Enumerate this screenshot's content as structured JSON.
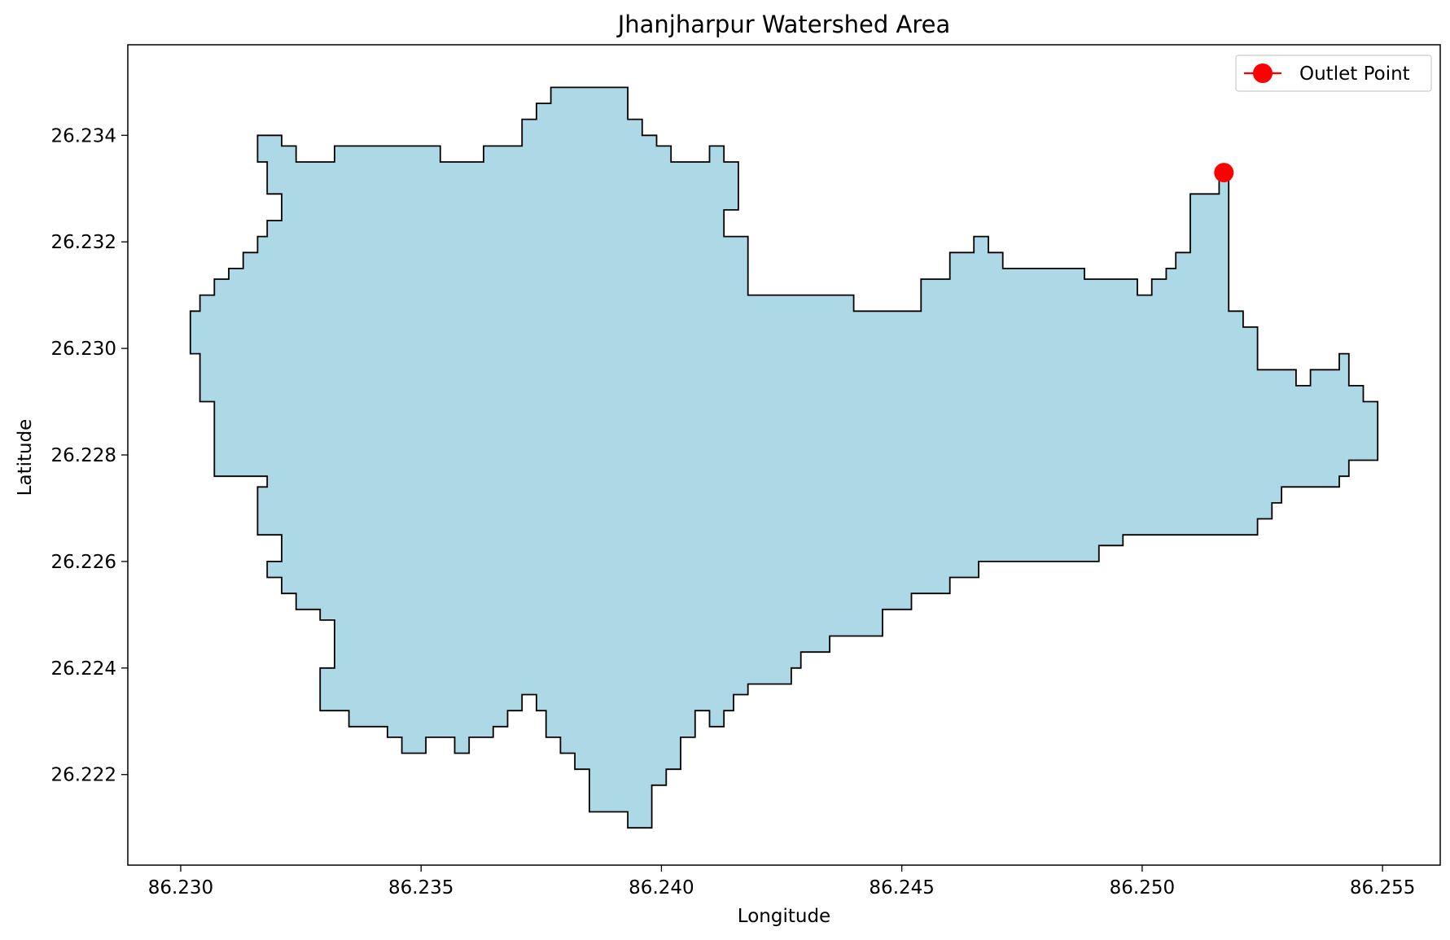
{
  "chart_data": {
    "type": "area",
    "title": "Jhanjharpur Watershed Area",
    "xlabel": "Longitude",
    "ylabel": "Latitude",
    "xlim": [
      86.2289,
      86.2562
    ],
    "ylim": [
      26.2203,
      26.2357
    ],
    "grid": false,
    "legend_position": "top-right",
    "xticks": [
      86.23,
      86.235,
      86.24,
      86.245,
      86.25,
      86.255
    ],
    "xtick_labels": [
      "86.230",
      "86.235",
      "86.240",
      "86.245",
      "86.250",
      "86.255"
    ],
    "yticks": [
      26.222,
      26.224,
      26.226,
      26.228,
      26.23,
      26.232,
      26.234
    ],
    "ytick_labels": [
      "26.222",
      "26.224",
      "26.226",
      "26.228",
      "26.230",
      "26.232",
      "26.234"
    ],
    "polygon_fill": "#add8e6",
    "polygon_stroke": "#000000",
    "watershed_boundary": [
      [
        86.2316,
        26.234
      ],
      [
        86.2321,
        26.234
      ],
      [
        86.2321,
        26.2338
      ],
      [
        86.2324,
        26.2338
      ],
      [
        86.2324,
        26.2335
      ],
      [
        86.2332,
        26.2335
      ],
      [
        86.2332,
        26.2338
      ],
      [
        86.2354,
        26.2338
      ],
      [
        86.2354,
        26.2335
      ],
      [
        86.2363,
        26.2335
      ],
      [
        86.2363,
        26.2338
      ],
      [
        86.2371,
        26.2338
      ],
      [
        86.2371,
        26.2343
      ],
      [
        86.2374,
        26.2343
      ],
      [
        86.2374,
        26.2346
      ],
      [
        86.2377,
        26.2346
      ],
      [
        86.2377,
        26.2349
      ],
      [
        86.2393,
        26.2349
      ],
      [
        86.2393,
        26.2343
      ],
      [
        86.2396,
        26.2343
      ],
      [
        86.2396,
        26.234
      ],
      [
        86.2399,
        26.234
      ],
      [
        86.2399,
        26.2338
      ],
      [
        86.2402,
        26.2338
      ],
      [
        86.2402,
        26.2335
      ],
      [
        86.241,
        26.2335
      ],
      [
        86.241,
        26.2338
      ],
      [
        86.2413,
        26.2338
      ],
      [
        86.2413,
        26.2335
      ],
      [
        86.2416,
        26.2335
      ],
      [
        86.2416,
        26.2326
      ],
      [
        86.2413,
        26.2326
      ],
      [
        86.2413,
        26.2321
      ],
      [
        86.2418,
        26.2321
      ],
      [
        86.2418,
        26.231
      ],
      [
        86.244,
        26.231
      ],
      [
        86.244,
        26.2307
      ],
      [
        86.2454,
        26.2307
      ],
      [
        86.2454,
        26.2313
      ],
      [
        86.246,
        26.2313
      ],
      [
        86.246,
        26.2318
      ],
      [
        86.2465,
        26.2318
      ],
      [
        86.2465,
        26.2321
      ],
      [
        86.2468,
        26.2321
      ],
      [
        86.2468,
        26.2318
      ],
      [
        86.2471,
        26.2318
      ],
      [
        86.2471,
        26.2315
      ],
      [
        86.2488,
        26.2315
      ],
      [
        86.2488,
        26.2313
      ],
      [
        86.2499,
        26.2313
      ],
      [
        86.2499,
        26.231
      ],
      [
        86.2502,
        26.231
      ],
      [
        86.2502,
        26.2313
      ],
      [
        86.2505,
        26.2313
      ],
      [
        86.2505,
        26.2315
      ],
      [
        86.2507,
        26.2315
      ],
      [
        86.2507,
        26.2318
      ],
      [
        86.251,
        26.2318
      ],
      [
        86.251,
        26.2329
      ],
      [
        86.2516,
        26.2329
      ],
      [
        86.2516,
        26.2332
      ],
      [
        86.2518,
        26.2332
      ],
      [
        86.2518,
        26.2307
      ],
      [
        86.2521,
        26.2307
      ],
      [
        86.2521,
        26.2304
      ],
      [
        86.2524,
        26.2304
      ],
      [
        86.2524,
        26.2296
      ],
      [
        86.2532,
        26.2296
      ],
      [
        86.2532,
        26.2293
      ],
      [
        86.2535,
        26.2293
      ],
      [
        86.2535,
        26.2296
      ],
      [
        86.2541,
        26.2296
      ],
      [
        86.2541,
        26.2299
      ],
      [
        86.2543,
        26.2299
      ],
      [
        86.2543,
        26.2293
      ],
      [
        86.2546,
        26.2293
      ],
      [
        86.2546,
        26.229
      ],
      [
        86.2549,
        26.229
      ],
      [
        86.2549,
        26.2279
      ],
      [
        86.2543,
        26.2279
      ],
      [
        86.2543,
        26.2276
      ],
      [
        86.2541,
        26.2276
      ],
      [
        86.2541,
        26.2274
      ],
      [
        86.2529,
        26.2274
      ],
      [
        86.2529,
        26.2271
      ],
      [
        86.2527,
        26.2271
      ],
      [
        86.2527,
        26.2268
      ],
      [
        86.2524,
        26.2268
      ],
      [
        86.2524,
        26.2265
      ],
      [
        86.2496,
        26.2265
      ],
      [
        86.2496,
        26.2263
      ],
      [
        86.2491,
        26.2263
      ],
      [
        86.2491,
        26.226
      ],
      [
        86.2466,
        26.226
      ],
      [
        86.2466,
        26.2257
      ],
      [
        86.246,
        26.2257
      ],
      [
        86.246,
        26.2254
      ],
      [
        86.2452,
        26.2254
      ],
      [
        86.2452,
        26.2251
      ],
      [
        86.2446,
        26.2251
      ],
      [
        86.2446,
        26.2246
      ],
      [
        86.2435,
        26.2246
      ],
      [
        86.2435,
        26.2243
      ],
      [
        86.2429,
        26.2243
      ],
      [
        86.2429,
        26.224
      ],
      [
        86.2427,
        26.224
      ],
      [
        86.2427,
        26.2237
      ],
      [
        86.2418,
        26.2237
      ],
      [
        86.2418,
        26.2235
      ],
      [
        86.2415,
        26.2235
      ],
      [
        86.2415,
        26.2232
      ],
      [
        86.2413,
        26.2232
      ],
      [
        86.2413,
        26.2229
      ],
      [
        86.241,
        26.2229
      ],
      [
        86.241,
        26.2232
      ],
      [
        86.2407,
        26.2232
      ],
      [
        86.2407,
        26.2227
      ],
      [
        86.2404,
        26.2227
      ],
      [
        86.2404,
        26.2221
      ],
      [
        86.2401,
        26.2221
      ],
      [
        86.2401,
        26.2218
      ],
      [
        86.2398,
        26.2218
      ],
      [
        86.2398,
        26.221
      ],
      [
        86.2393,
        26.221
      ],
      [
        86.2393,
        26.2213
      ],
      [
        86.2385,
        26.2213
      ],
      [
        86.2385,
        26.2221
      ],
      [
        86.2382,
        26.2221
      ],
      [
        86.2382,
        26.2224
      ],
      [
        86.2379,
        26.2224
      ],
      [
        86.2379,
        26.2227
      ],
      [
        86.2376,
        26.2227
      ],
      [
        86.2376,
        26.2232
      ],
      [
        86.2374,
        26.2232
      ],
      [
        86.2374,
        26.2235
      ],
      [
        86.2371,
        26.2235
      ],
      [
        86.2371,
        26.2232
      ],
      [
        86.2368,
        26.2232
      ],
      [
        86.2368,
        26.2229
      ],
      [
        86.2365,
        26.2229
      ],
      [
        86.2365,
        26.2227
      ],
      [
        86.236,
        26.2227
      ],
      [
        86.236,
        26.2224
      ],
      [
        86.2357,
        26.2224
      ],
      [
        86.2357,
        26.2227
      ],
      [
        86.2351,
        26.2227
      ],
      [
        86.2351,
        26.2224
      ],
      [
        86.2346,
        26.2224
      ],
      [
        86.2346,
        26.2227
      ],
      [
        86.2343,
        26.2227
      ],
      [
        86.2343,
        26.2229
      ],
      [
        86.2335,
        26.2229
      ],
      [
        86.2335,
        26.2232
      ],
      [
        86.2329,
        26.2232
      ],
      [
        86.2329,
        26.224
      ],
      [
        86.2332,
        26.224
      ],
      [
        86.2332,
        26.2249
      ],
      [
        86.2329,
        26.2249
      ],
      [
        86.2329,
        26.2251
      ],
      [
        86.2324,
        26.2251
      ],
      [
        86.2324,
        26.2254
      ],
      [
        86.2321,
        26.2254
      ],
      [
        86.2321,
        26.2257
      ],
      [
        86.2318,
        26.2257
      ],
      [
        86.2318,
        26.226
      ],
      [
        86.2321,
        26.226
      ],
      [
        86.2321,
        26.2265
      ],
      [
        86.2316,
        26.2265
      ],
      [
        86.2316,
        26.2274
      ],
      [
        86.2318,
        26.2274
      ],
      [
        86.2318,
        26.2276
      ],
      [
        86.2307,
        26.2276
      ],
      [
        86.2307,
        26.229
      ],
      [
        86.2304,
        26.229
      ],
      [
        86.2304,
        26.2299
      ],
      [
        86.2302,
        26.2299
      ],
      [
        86.2302,
        26.2307
      ],
      [
        86.2304,
        26.2307
      ],
      [
        86.2304,
        26.231
      ],
      [
        86.2307,
        26.231
      ],
      [
        86.2307,
        26.2313
      ],
      [
        86.231,
        26.2313
      ],
      [
        86.231,
        26.2315
      ],
      [
        86.2313,
        26.2315
      ],
      [
        86.2313,
        26.2318
      ],
      [
        86.2316,
        26.2318
      ],
      [
        86.2316,
        26.2321
      ],
      [
        86.2318,
        26.2321
      ],
      [
        86.2318,
        26.2324
      ],
      [
        86.2321,
        26.2324
      ],
      [
        86.2321,
        26.2329
      ],
      [
        86.2318,
        26.2329
      ],
      [
        86.2318,
        26.2335
      ],
      [
        86.2316,
        26.2335
      ],
      [
        86.2316,
        26.234
      ]
    ],
    "series": [
      {
        "name": "Outlet Point",
        "type": "point",
        "x": [
          86.2517
        ],
        "y": [
          26.2333
        ],
        "color": "#ff0000"
      }
    ]
  }
}
